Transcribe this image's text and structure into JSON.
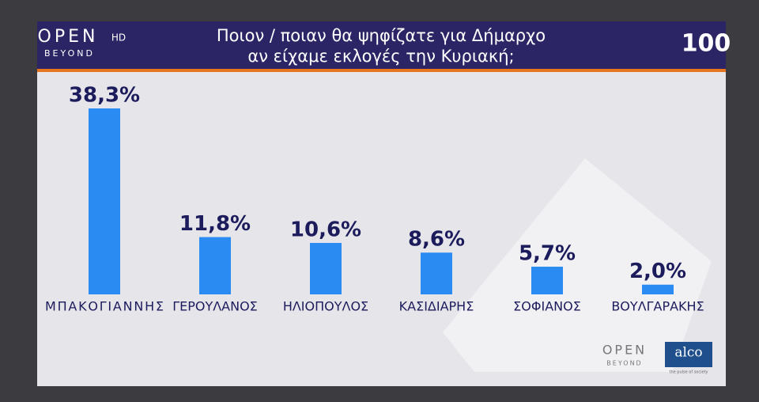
{
  "chart_data": {
    "type": "bar",
    "title": "Ποιον / ποιαν θα ψηφίζατε για Δήμαρχο",
    "subtitle": "αν είχαμε εκλογές την Κυριακή;",
    "categories": [
      "ΜΠΑΚΟΓΙΑΝΝΗΣ",
      "ΓΕΡΟΥΛΑΝΟΣ",
      "ΗΛΙΟΠΟΥΛΟΣ",
      "ΚΑΣΙΔΙΑΡΗΣ",
      "ΣΟΦΙΑΝΟΣ",
      "ΒΟΥΛΓΑΡΑΚΗΣ"
    ],
    "values": [
      38.3,
      11.8,
      10.6,
      8.6,
      5.7,
      2.0
    ],
    "value_labels": [
      "38,3%",
      "11,8%",
      "10,6%",
      "8,6%",
      "5,7%",
      "2,0%"
    ],
    "color": "#2a8cf2"
  },
  "branding": {
    "channel": "OPEN",
    "channel_suffix": "HD",
    "channel_tagline": "BEYOND",
    "show": "100",
    "footer_channel": "OPEN",
    "footer_tagline": "BEYOND",
    "pollster": "alco",
    "pollster_tagline": "the pulse of society"
  }
}
